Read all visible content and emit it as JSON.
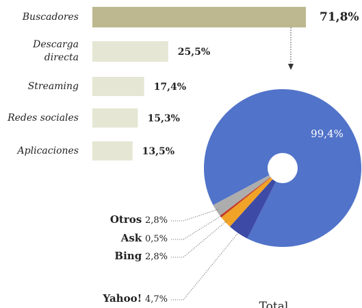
{
  "chart_data": [
    {
      "type": "hbar",
      "categories": [
        "Buscadores",
        "Descarga directa",
        "Streaming",
        "Redes sociales",
        "Aplicaciones"
      ],
      "values": [
        71.8,
        25.5,
        17.4,
        15.3,
        13.5
      ],
      "value_labels": [
        "71,8%",
        "25,5%",
        "17,4%",
        "15,3%",
        "13,5%"
      ],
      "colors": [
        "#bdb88f",
        "#e5e7d4",
        "#e5e7d4",
        "#e5e7d4",
        "#e5e7d4"
      ]
    },
    {
      "type": "donut",
      "categories": [
        null,
        "Yahoo!",
        "Bing",
        "Ask",
        "Otros"
      ],
      "values": [
        99.4,
        4.7,
        2.8,
        0.5,
        2.8
      ],
      "value_labels": [
        "99,4%",
        "4,7%",
        "2,8%",
        "0,5%",
        "2,8%"
      ],
      "colors": [
        "#5173c9",
        "#3d4aa6",
        "#f0a326",
        "#c43a2a",
        "#adadad"
      ],
      "annotation": "Total"
    }
  ]
}
